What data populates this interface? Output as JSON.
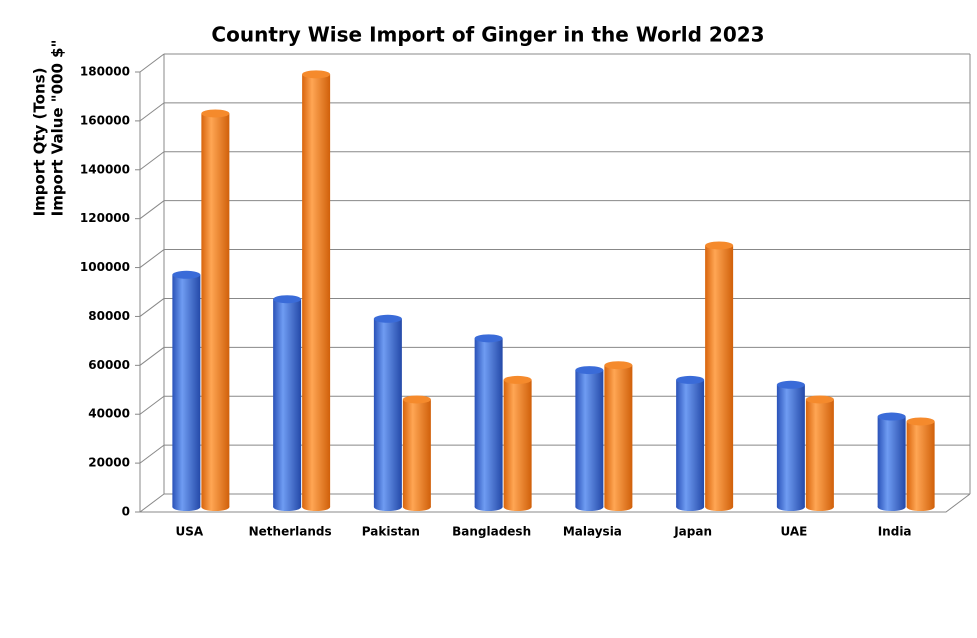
{
  "chart_data": {
    "type": "bar3d",
    "title": "Country Wise Import of Ginger in the World 2023",
    "y_label": [
      "Import Qty (Tons)",
      "Import Value \"000 $\""
    ],
    "categories": [
      "USA",
      "Netherlands",
      "Pakistan",
      "Bangladesh",
      "Malaysia",
      "Japan",
      "UAE",
      "India"
    ],
    "series": [
      {
        "color": "#3a6bd8",
        "values": [
          95000,
          85000,
          77000,
          69000,
          56000,
          52000,
          50000,
          37000
        ]
      },
      {
        "color": "#f58a2c",
        "values": [
          161000,
          177000,
          44000,
          52000,
          58000,
          107000,
          44000,
          35000
        ]
      }
    ],
    "ylim": [
      0,
      180000
    ],
    "yticks": [
      0,
      20000,
      40000,
      60000,
      80000,
      100000,
      120000,
      140000,
      160000,
      180000
    ],
    "grid": true
  }
}
